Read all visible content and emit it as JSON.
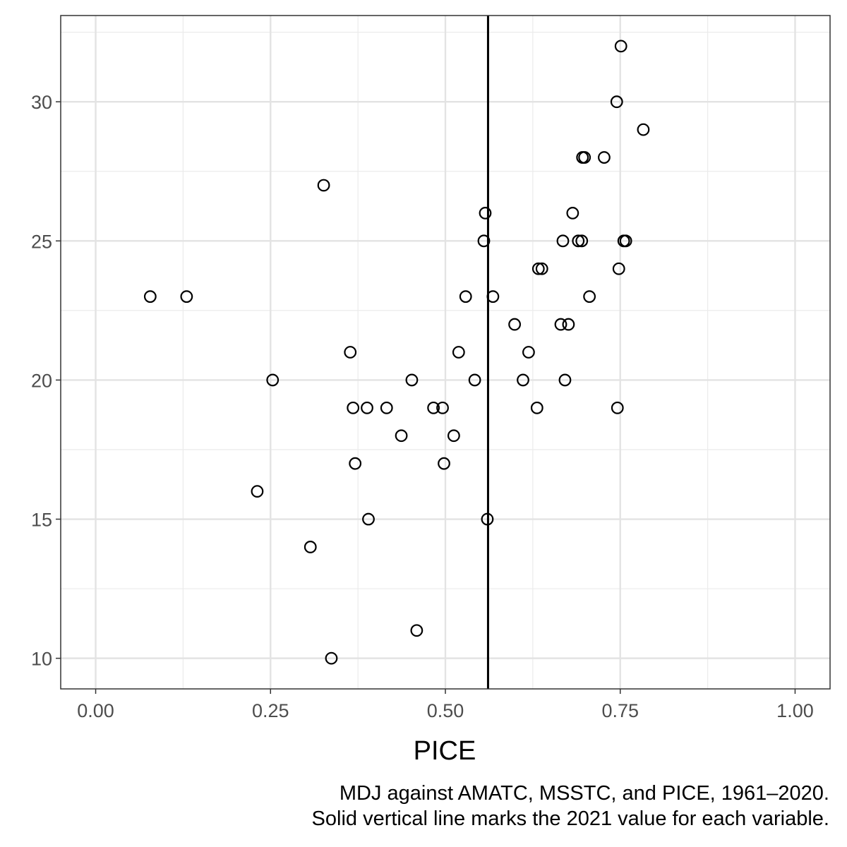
{
  "chart_data": {
    "type": "scatter",
    "title": "",
    "xlabel": "PICE",
    "ylabel": "",
    "xlim": [
      -0.05,
      1.05
    ],
    "ylim": [
      8.9,
      33.1
    ],
    "x_ticks": [
      0.0,
      0.25,
      0.5,
      0.75,
      1.0
    ],
    "x_tick_labels": [
      "0.00",
      "0.25",
      "0.50",
      "0.75",
      "1.00"
    ],
    "y_ticks": [
      10,
      15,
      20,
      25,
      30
    ],
    "y_tick_labels": [
      "10",
      "15",
      "20",
      "25",
      "30"
    ],
    "grid": true,
    "legend": "none",
    "vline": {
      "x": 0.561
    },
    "marker": "open-circle",
    "series": [
      {
        "points": [
          {
            "x": 0.078,
            "y": 23
          },
          {
            "x": 0.13,
            "y": 23
          },
          {
            "x": 0.231,
            "y": 16
          },
          {
            "x": 0.253,
            "y": 20
          },
          {
            "x": 0.307,
            "y": 14
          },
          {
            "x": 0.326,
            "y": 27
          },
          {
            "x": 0.337,
            "y": 10
          },
          {
            "x": 0.364,
            "y": 21
          },
          {
            "x": 0.368,
            "y": 19
          },
          {
            "x": 0.371,
            "y": 17
          },
          {
            "x": 0.388,
            "y": 19
          },
          {
            "x": 0.39,
            "y": 15
          },
          {
            "x": 0.416,
            "y": 19
          },
          {
            "x": 0.437,
            "y": 18
          },
          {
            "x": 0.452,
            "y": 20
          },
          {
            "x": 0.459,
            "y": 11
          },
          {
            "x": 0.483,
            "y": 19
          },
          {
            "x": 0.496,
            "y": 19
          },
          {
            "x": 0.498,
            "y": 17
          },
          {
            "x": 0.512,
            "y": 18
          },
          {
            "x": 0.519,
            "y": 21
          },
          {
            "x": 0.529,
            "y": 23
          },
          {
            "x": 0.542,
            "y": 20
          },
          {
            "x": 0.555,
            "y": 25
          },
          {
            "x": 0.557,
            "y": 26
          },
          {
            "x": 0.56,
            "y": 15
          },
          {
            "x": 0.568,
            "y": 23
          },
          {
            "x": 0.599,
            "y": 22
          },
          {
            "x": 0.611,
            "y": 20
          },
          {
            "x": 0.619,
            "y": 21
          },
          {
            "x": 0.631,
            "y": 19
          },
          {
            "x": 0.633,
            "y": 24
          },
          {
            "x": 0.638,
            "y": 24
          },
          {
            "x": 0.665,
            "y": 22
          },
          {
            "x": 0.668,
            "y": 25
          },
          {
            "x": 0.671,
            "y": 20
          },
          {
            "x": 0.676,
            "y": 22
          },
          {
            "x": 0.682,
            "y": 26
          },
          {
            "x": 0.69,
            "y": 25
          },
          {
            "x": 0.695,
            "y": 25
          },
          {
            "x": 0.696,
            "y": 28
          },
          {
            "x": 0.699,
            "y": 28
          },
          {
            "x": 0.706,
            "y": 23
          },
          {
            "x": 0.727,
            "y": 28
          },
          {
            "x": 0.745,
            "y": 30
          },
          {
            "x": 0.746,
            "y": 19
          },
          {
            "x": 0.748,
            "y": 24
          },
          {
            "x": 0.751,
            "y": 32
          },
          {
            "x": 0.755,
            "y": 25
          },
          {
            "x": 0.758,
            "y": 25
          },
          {
            "x": 0.783,
            "y": 29
          }
        ]
      }
    ],
    "caption": [
      "MDJ against AMATC, MSSTC, and PICE, 1961–2020.",
      "Solid vertical line marks the 2021 value for each variable."
    ]
  }
}
